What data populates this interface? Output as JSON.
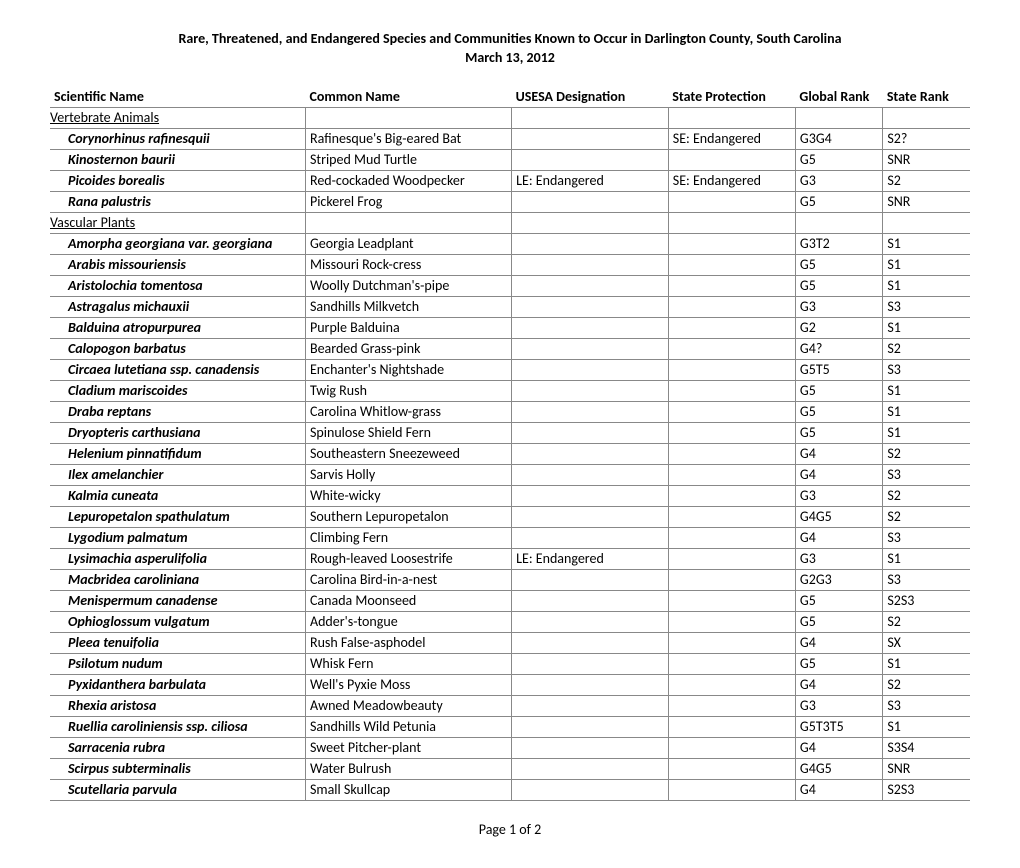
{
  "title": "Rare, Threatened, and Endangered Species and Communities Known to Occur in Darlington County, South Carolina",
  "date": "March 13, 2012",
  "footer": "Page 1 of 2",
  "columns": {
    "sci": "Scientific Name",
    "com": "Common Name",
    "us": "USESA Designation",
    "sp": "State Protection",
    "gr": "Global Rank",
    "sr": "State Rank"
  },
  "sections": [
    {
      "name": "Vertebrate Animals",
      "rows": [
        {
          "sci": "Corynorhinus rafinesquii",
          "com": "Rafinesque's Big-eared Bat",
          "us": "",
          "sp": "SE: Endangered",
          "gr": "G3G4",
          "sr": "S2?"
        },
        {
          "sci": "Kinosternon baurii",
          "com": "Striped Mud Turtle",
          "us": "",
          "sp": "",
          "gr": "G5",
          "sr": "SNR"
        },
        {
          "sci": "Picoides borealis",
          "com": "Red-cockaded Woodpecker",
          "us": "LE: Endangered",
          "sp": "SE: Endangered",
          "gr": "G3",
          "sr": "S2"
        },
        {
          "sci": "Rana palustris",
          "com": "Pickerel Frog",
          "us": "",
          "sp": "",
          "gr": "G5",
          "sr": "SNR"
        }
      ]
    },
    {
      "name": "Vascular Plants",
      "rows": [
        {
          "sci": "Amorpha georgiana var. georgiana",
          "com": "Georgia Leadplant",
          "us": "",
          "sp": "",
          "gr": "G3T2",
          "sr": "S1"
        },
        {
          "sci": "Arabis missouriensis",
          "com": "Missouri Rock-cress",
          "us": "",
          "sp": "",
          "gr": "G5",
          "sr": "S1"
        },
        {
          "sci": "Aristolochia tomentosa",
          "com": "Woolly Dutchman's-pipe",
          "us": "",
          "sp": "",
          "gr": "G5",
          "sr": "S1"
        },
        {
          "sci": "Astragalus michauxii",
          "com": "Sandhills Milkvetch",
          "us": "",
          "sp": "",
          "gr": "G3",
          "sr": "S3"
        },
        {
          "sci": "Balduina atropurpurea",
          "com": "Purple Balduina",
          "us": "",
          "sp": "",
          "gr": "G2",
          "sr": "S1"
        },
        {
          "sci": "Calopogon barbatus",
          "com": "Bearded Grass-pink",
          "us": "",
          "sp": "",
          "gr": "G4?",
          "sr": "S2"
        },
        {
          "sci": "Circaea lutetiana ssp. canadensis",
          "com": "Enchanter's Nightshade",
          "us": "",
          "sp": "",
          "gr": "G5T5",
          "sr": "S3"
        },
        {
          "sci": "Cladium mariscoides",
          "com": "Twig Rush",
          "us": "",
          "sp": "",
          "gr": "G5",
          "sr": "S1"
        },
        {
          "sci": "Draba reptans",
          "com": "Carolina Whitlow-grass",
          "us": "",
          "sp": "",
          "gr": "G5",
          "sr": "S1"
        },
        {
          "sci": "Dryopteris carthusiana",
          "com": "Spinulose Shield Fern",
          "us": "",
          "sp": "",
          "gr": "G5",
          "sr": "S1"
        },
        {
          "sci": "Helenium pinnatifidum",
          "com": "Southeastern Sneezeweed",
          "us": "",
          "sp": "",
          "gr": "G4",
          "sr": "S2"
        },
        {
          "sci": "Ilex amelanchier",
          "com": "Sarvis Holly",
          "us": "",
          "sp": "",
          "gr": "G4",
          "sr": "S3"
        },
        {
          "sci": "Kalmia cuneata",
          "com": "White-wicky",
          "us": "",
          "sp": "",
          "gr": "G3",
          "sr": "S2"
        },
        {
          "sci": "Lepuropetalon spathulatum",
          "com": "Southern Lepuropetalon",
          "us": "",
          "sp": "",
          "gr": "G4G5",
          "sr": "S2"
        },
        {
          "sci": "Lygodium palmatum",
          "com": "Climbing Fern",
          "us": "",
          "sp": "",
          "gr": "G4",
          "sr": "S3"
        },
        {
          "sci": "Lysimachia asperulifolia",
          "com": "Rough-leaved Loosestrife",
          "us": "LE: Endangered",
          "sp": "",
          "gr": "G3",
          "sr": "S1"
        },
        {
          "sci": "Macbridea caroliniana",
          "com": "Carolina Bird-in-a-nest",
          "us": "",
          "sp": "",
          "gr": "G2G3",
          "sr": "S3"
        },
        {
          "sci": "Menispermum canadense",
          "com": "Canada Moonseed",
          "us": "",
          "sp": "",
          "gr": "G5",
          "sr": "S2S3"
        },
        {
          "sci": "Ophioglossum vulgatum",
          "com": "Adder's-tongue",
          "us": "",
          "sp": "",
          "gr": "G5",
          "sr": "S2"
        },
        {
          "sci": "Pleea tenuifolia",
          "com": "Rush False-asphodel",
          "us": "",
          "sp": "",
          "gr": "G4",
          "sr": "SX"
        },
        {
          "sci": "Psilotum nudum",
          "com": "Whisk Fern",
          "us": "",
          "sp": "",
          "gr": "G5",
          "sr": "S1"
        },
        {
          "sci": "Pyxidanthera barbulata",
          "com": "Well's Pyxie Moss",
          "us": "",
          "sp": "",
          "gr": "G4",
          "sr": "S2"
        },
        {
          "sci": "Rhexia aristosa",
          "com": "Awned Meadowbeauty",
          "us": "",
          "sp": "",
          "gr": "G3",
          "sr": "S3"
        },
        {
          "sci": "Ruellia caroliniensis ssp. ciliosa",
          "com": "Sandhills Wild Petunia",
          "us": "",
          "sp": "",
          "gr": "G5T3T5",
          "sr": "S1"
        },
        {
          "sci": "Sarracenia rubra",
          "com": "Sweet Pitcher-plant",
          "us": "",
          "sp": "",
          "gr": "G4",
          "sr": "S3S4"
        },
        {
          "sci": "Scirpus subterminalis",
          "com": "Water Bulrush",
          "us": "",
          "sp": "",
          "gr": "G4G5",
          "sr": "SNR"
        },
        {
          "sci": "Scutellaria parvula",
          "com": "Small Skullcap",
          "us": "",
          "sp": "",
          "gr": "G4",
          "sr": "S2S3"
        }
      ]
    }
  ]
}
